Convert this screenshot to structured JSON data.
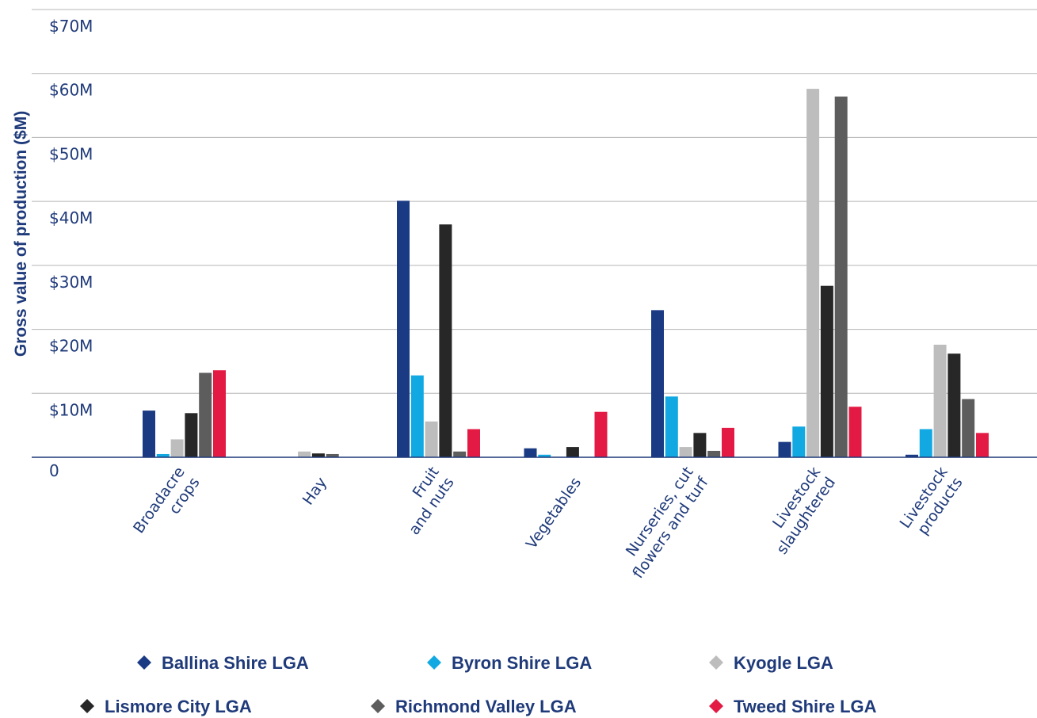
{
  "chart_data": {
    "type": "bar",
    "ylabel": "Gross value of production ($M)",
    "xlabel": "",
    "ylim": [
      0,
      70
    ],
    "yticks": [
      {
        "value": 0,
        "label": "0"
      },
      {
        "value": 10,
        "label": "$10M"
      },
      {
        "value": 20,
        "label": "$20M"
      },
      {
        "value": 30,
        "label": "$30M"
      },
      {
        "value": 40,
        "label": "$40M"
      },
      {
        "value": 50,
        "label": "$50M"
      },
      {
        "value": 60,
        "label": "$60M"
      },
      {
        "value": 70,
        "label": "$70M"
      }
    ],
    "categories": [
      [
        "Broadacre",
        "crops"
      ],
      [
        "Hay"
      ],
      [
        "Fruit",
        "and nuts"
      ],
      [
        "Vegetables"
      ],
      [
        "Nurseries, cut",
        "flowers and turf"
      ],
      [
        "Livestock",
        "slaughtered"
      ],
      [
        "Livestock",
        "products"
      ]
    ],
    "series": [
      {
        "name": "Ballina Shire LGA",
        "color": "#1b3a84",
        "values": [
          7.3,
          0.0,
          40.1,
          1.4,
          23.0,
          2.4,
          0.4
        ]
      },
      {
        "name": "Byron Shire LGA",
        "color": "#12a9e2",
        "values": [
          0.5,
          0.0,
          12.8,
          0.4,
          9.5,
          4.8,
          4.4
        ]
      },
      {
        "name": "Kyogle LGA",
        "color": "#bdbdbd",
        "values": [
          2.8,
          0.9,
          5.6,
          0.1,
          1.6,
          57.6,
          17.6
        ]
      },
      {
        "name": "Lismore City LGA",
        "color": "#272727",
        "values": [
          6.9,
          0.6,
          36.4,
          1.6,
          3.8,
          26.8,
          16.2
        ]
      },
      {
        "name": "Richmond Valley LGA",
        "color": "#5d5d5d",
        "values": [
          13.2,
          0.5,
          0.9,
          0.0,
          1.0,
          56.4,
          9.1
        ]
      },
      {
        "name": "Tweed Shire LGA",
        "color": "#e31b44",
        "values": [
          13.6,
          0.0,
          4.4,
          7.1,
          4.6,
          7.9,
          3.8
        ]
      }
    ],
    "grid": true,
    "legend_position": "bottom"
  }
}
